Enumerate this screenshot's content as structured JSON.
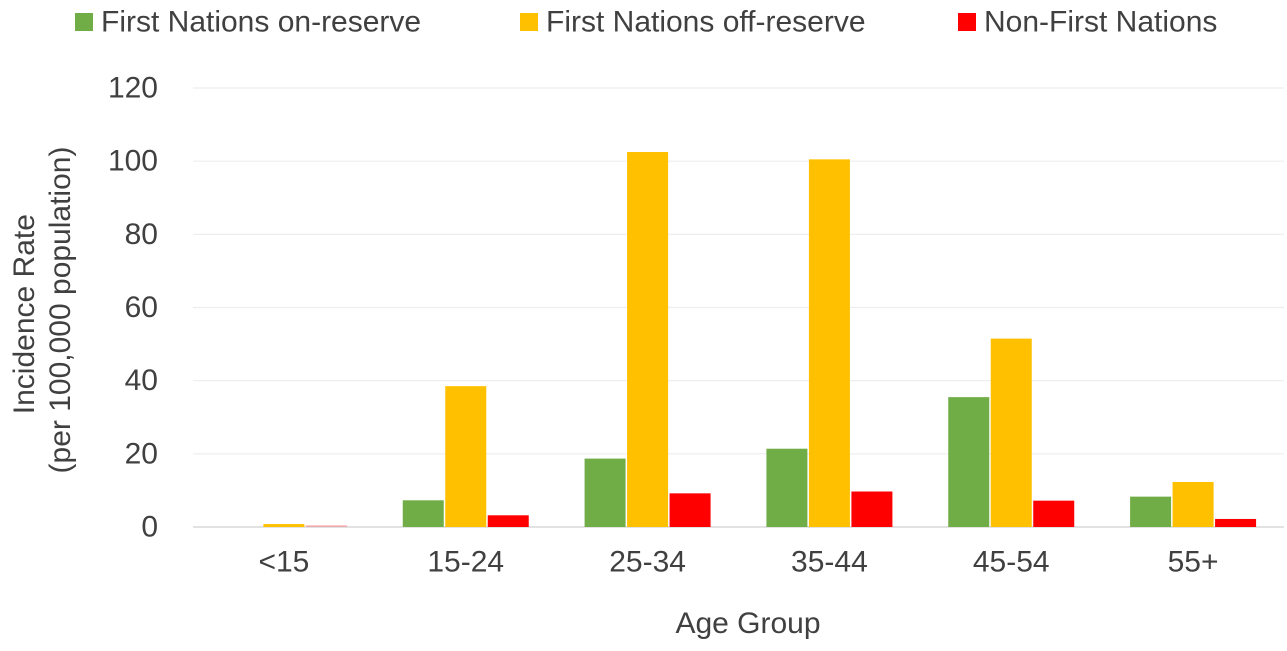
{
  "chart_data": {
    "type": "bar",
    "title": "",
    "xlabel": "Age Group",
    "ylabel_lines": [
      "Incidence Rate",
      "(per 100,000 population)"
    ],
    "categories": [
      "<15",
      "15-24",
      "25-34",
      "35-44",
      "45-54",
      "55+"
    ],
    "ylim": [
      0,
      120
    ],
    "yticks": [
      0,
      20,
      40,
      60,
      80,
      100,
      120
    ],
    "grid": true,
    "legend_position": "top",
    "series": [
      {
        "name": "First Nations on-reserve",
        "color": "#70AD47",
        "values": [
          0,
          7.3,
          18.7,
          21.4,
          35.5,
          8.3
        ]
      },
      {
        "name": "First Nations off-reserve",
        "color": "#FFC000",
        "values": [
          0.8,
          38.5,
          102.5,
          100.5,
          51.5,
          12.3
        ]
      },
      {
        "name": "Non-First Nations",
        "color": "#FF0000",
        "values": [
          0.5,
          3.2,
          9.2,
          9.7,
          7.2,
          2.2
        ]
      }
    ]
  }
}
